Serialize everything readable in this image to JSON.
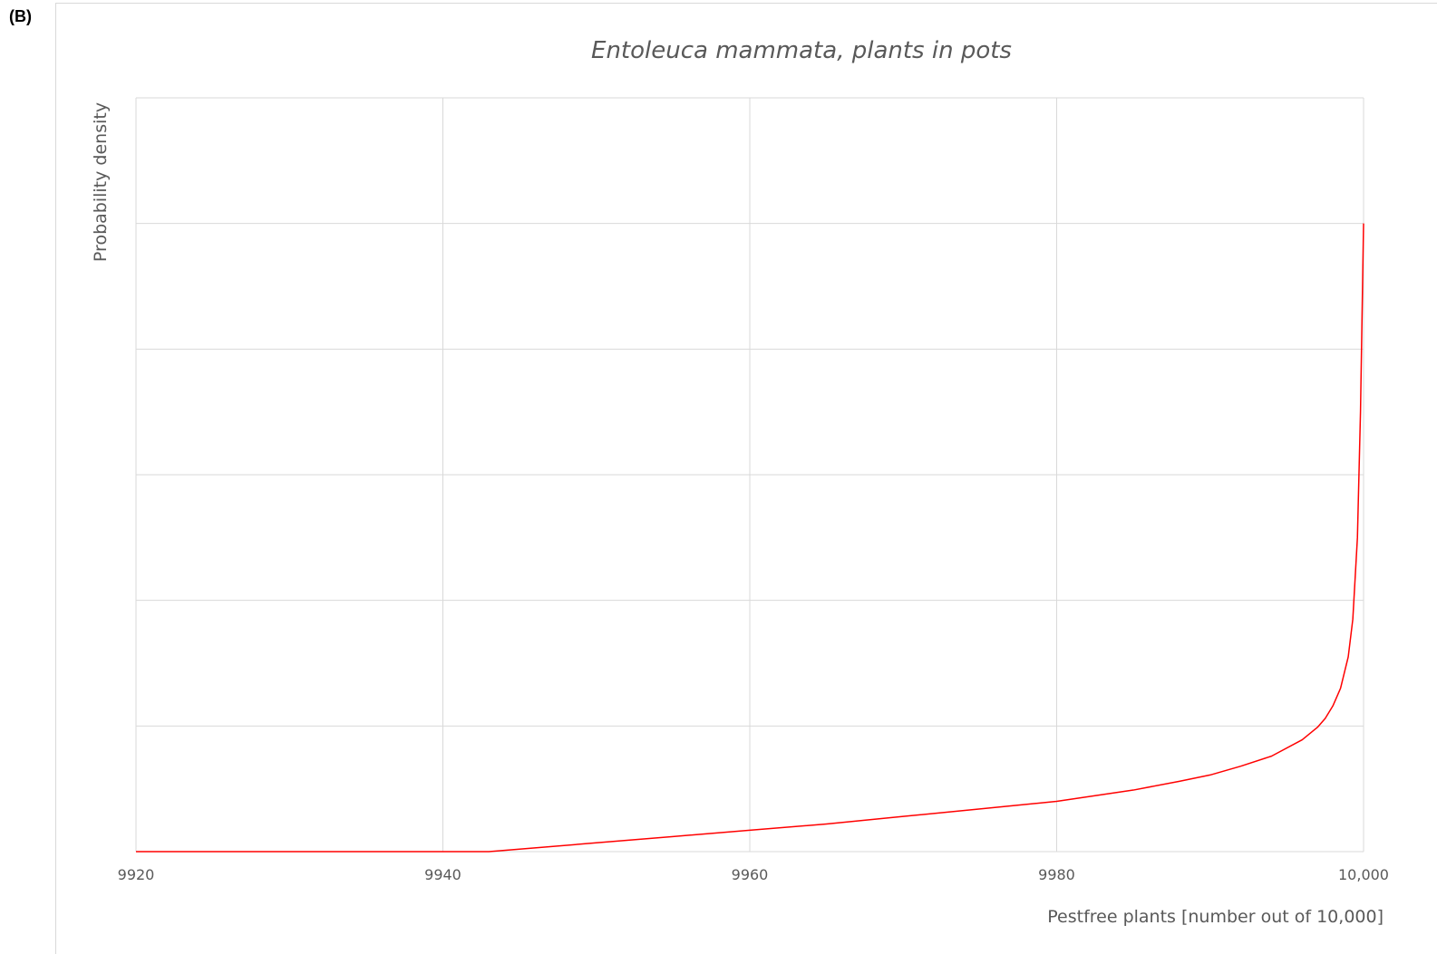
{
  "panel_label": "(B)",
  "colors": {
    "line": "#ff0000",
    "grid": "#d9d9d9",
    "text": "#595959"
  },
  "chart_data": {
    "type": "line",
    "title": "Entoleuca mammata, plants in pots",
    "xlabel": "Pestfree plants [number out of 10,000]",
    "ylabel": "Probability density",
    "xlim": [
      9920,
      10000
    ],
    "ylim": [
      0,
      6
    ],
    "x_ticks": [
      9920,
      9940,
      9960,
      9980,
      10000
    ],
    "x_tick_labels": [
      "9920",
      "9940",
      "9960",
      "9980",
      "10,000"
    ],
    "y_gridlines": [
      0,
      1,
      2,
      3,
      4,
      5,
      6
    ],
    "y_tick_labels_shown": false,
    "grid": true,
    "legend": "none",
    "series": [
      {
        "x": [
          9920,
          9930,
          9940,
          9943,
          9945,
          9950,
          9955,
          9960,
          9965,
          9970,
          9975,
          9980,
          9985,
          9988,
          9990,
          9992,
          9994,
          9996,
          9997,
          9997.5,
          9998,
          9998.5,
          9999,
          9999.3,
          9999.6,
          9999.8,
          10000
        ],
        "y": [
          0,
          0,
          0,
          0,
          0.02,
          0.07,
          0.12,
          0.17,
          0.22,
          0.28,
          0.34,
          0.4,
          0.49,
          0.56,
          0.61,
          0.68,
          0.76,
          0.89,
          0.99,
          1.06,
          1.16,
          1.3,
          1.55,
          1.85,
          2.5,
          3.5,
          5
        ]
      }
    ]
  }
}
